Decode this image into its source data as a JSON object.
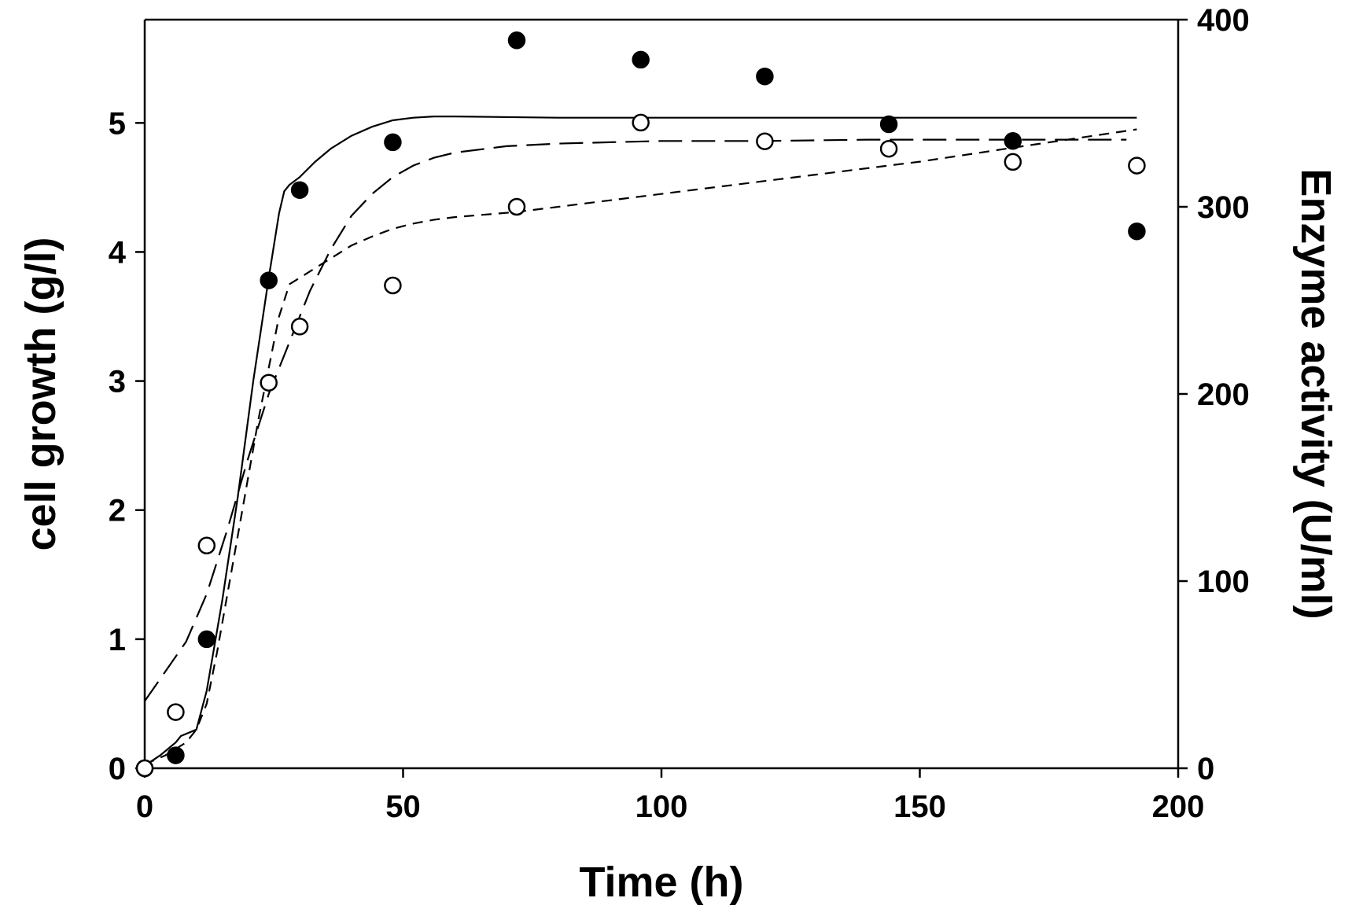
{
  "chart_data": {
    "type": "scatter",
    "title": "",
    "xlabel": "Time (h)",
    "ylabel_left": "cell growth (g/l)",
    "ylabel_right": "Enzyme activity (U/ml)",
    "xlim": [
      0,
      200
    ],
    "ylim_left": [
      0,
      5.8
    ],
    "ylim_right": [
      0,
      400
    ],
    "x_ticks": [
      0,
      50,
      100,
      150,
      200
    ],
    "y_left_ticks": [
      0,
      1,
      2,
      3,
      4,
      5
    ],
    "y_right_ticks": [
      0,
      100,
      200,
      300,
      400
    ],
    "grid": false,
    "series": [
      {
        "name": "cell growth (filled circles)",
        "axis": "left",
        "marker": "filled-circle",
        "x": [
          0,
          6,
          12,
          24,
          30,
          48,
          72,
          96,
          120,
          144,
          168,
          192
        ],
        "y": [
          0.0,
          0.1,
          1.0,
          3.78,
          4.48,
          4.85,
          5.64,
          5.49,
          5.36,
          4.99,
          4.86,
          4.16
        ]
      },
      {
        "name": "enzyme activity (open circles)",
        "axis": "right",
        "marker": "open-circle",
        "x": [
          0,
          6,
          12,
          24,
          30,
          48,
          72,
          96,
          120,
          144,
          168,
          192
        ],
        "y": [
          0,
          30,
          119,
          206,
          236,
          258,
          300,
          345,
          335,
          331,
          324,
          322
        ]
      },
      {
        "name": "fitted curve (solid)",
        "axis": "left",
        "style": "solid",
        "x": [
          0,
          3,
          6,
          7,
          10,
          12,
          15,
          18,
          21,
          24,
          26,
          27,
          28,
          30,
          33,
          36,
          40,
          44,
          48,
          52,
          56,
          60,
          80,
          100,
          120,
          140,
          160,
          180,
          192
        ],
        "y": [
          0.02,
          0.1,
          0.2,
          0.25,
          0.3,
          0.6,
          1.3,
          2.1,
          3.0,
          3.8,
          4.3,
          4.47,
          4.52,
          4.58,
          4.7,
          4.8,
          4.9,
          4.97,
          5.02,
          5.04,
          5.05,
          5.05,
          5.04,
          5.04,
          5.04,
          5.04,
          5.04,
          5.04,
          5.04
        ]
      },
      {
        "name": "fitted curve (long dash)",
        "axis": "left",
        "style": "long-dash",
        "x": [
          0,
          4,
          8,
          12,
          16,
          20,
          24,
          28,
          32,
          36,
          40,
          44,
          48,
          52,
          56,
          60,
          70,
          80,
          90,
          100,
          120,
          140,
          160,
          180,
          190
        ],
        "y": [
          0.52,
          0.75,
          0.98,
          1.35,
          1.85,
          2.4,
          2.9,
          3.3,
          3.7,
          4.02,
          4.28,
          4.45,
          4.58,
          4.67,
          4.73,
          4.77,
          4.82,
          4.84,
          4.85,
          4.86,
          4.86,
          4.87,
          4.87,
          4.87,
          4.87
        ]
      },
      {
        "name": "fitted curve (short dash)",
        "axis": "left",
        "style": "short-dash",
        "x": [
          0,
          4,
          8,
          10,
          12,
          14,
          18,
          22,
          26,
          28,
          32,
          36,
          40,
          44,
          48,
          52,
          56,
          60,
          72,
          90,
          110,
          130,
          150,
          170,
          192
        ],
        "y": [
          0.03,
          0.1,
          0.2,
          0.3,
          0.5,
          0.9,
          1.8,
          2.7,
          3.5,
          3.75,
          3.85,
          3.95,
          4.05,
          4.12,
          4.18,
          4.22,
          4.25,
          4.27,
          4.31,
          4.4,
          4.5,
          4.6,
          4.7,
          4.82,
          4.95
        ]
      }
    ]
  }
}
